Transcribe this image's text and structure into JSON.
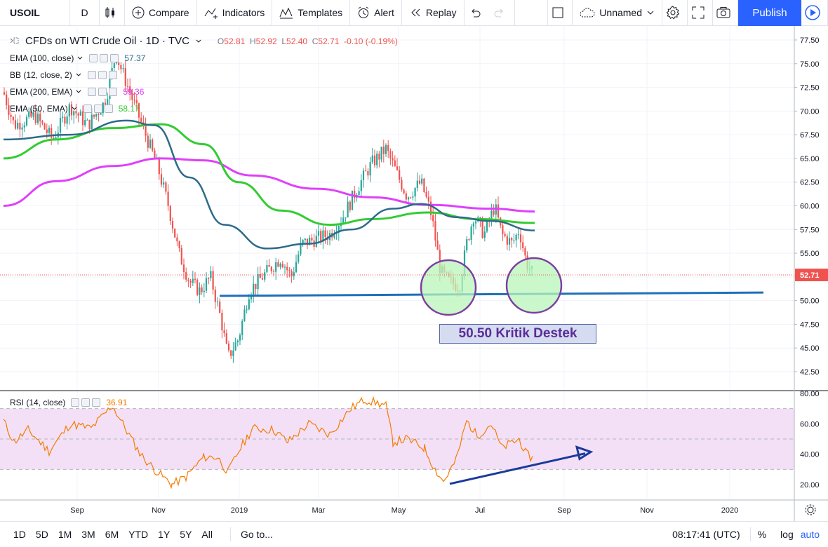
{
  "toolbar": {
    "symbol": "USOIL",
    "interval": "D",
    "compare_label": "Compare",
    "indicators_label": "Indicators",
    "templates_label": "Templates",
    "alert_label": "Alert",
    "replay_label": "Replay",
    "layout_name": "Unnamed",
    "publish_label": "Publish"
  },
  "legend": {
    "title": "CFDs on WTI Crude Oil · 1D · TVC",
    "ohlc": {
      "o_label": "O",
      "o": "52.81",
      "h_label": "H",
      "h": "52.92",
      "l_label": "L",
      "l": "52.40",
      "c_label": "C",
      "c": "52.71",
      "change": "-0.10 (-0.19%)"
    },
    "indicators": [
      {
        "label": "EMA (100, close)",
        "value": "57.37",
        "color": "#2e6b8a"
      },
      {
        "label": "BB (12, close, 2)",
        "value": "",
        "color": "#2196f3"
      },
      {
        "label": "EMA (200, EMA)",
        "value": "59.36",
        "color": "#e040fb"
      },
      {
        "label": "EMA (50, EMA)",
        "value": "58.17",
        "color": "#33cc33"
      }
    ]
  },
  "rsi": {
    "label": "RSI (14, close)",
    "value": "36.91",
    "color": "#f57c00"
  },
  "price_axis": {
    "ticks": [
      "77.50",
      "75.00",
      "72.50",
      "70.00",
      "67.50",
      "65.00",
      "62.50",
      "60.00",
      "57.50",
      "55.00",
      "52.50",
      "50.00",
      "47.50",
      "45.00",
      "42.50"
    ],
    "last_price": "52.71",
    "last_price_color": "#ef5350"
  },
  "rsi_axis": {
    "ticks": [
      "80.00",
      "60.00",
      "40.00",
      "20.00"
    ]
  },
  "time_axis": {
    "ticks": [
      "Sep",
      "Nov",
      "2019",
      "Mar",
      "May",
      "Jul",
      "Sep",
      "Nov",
      "2020"
    ]
  },
  "annotation": {
    "text": "50.50 Kritik Destek"
  },
  "bottombar": {
    "ranges": [
      "1D",
      "5D",
      "1M",
      "3M",
      "6M",
      "YTD",
      "1Y",
      "5Y",
      "All"
    ],
    "goto_label": "Go to...",
    "clock": "08:17:41 (UTC)",
    "percent_label": "%",
    "log_label": "log",
    "auto_label": "auto"
  },
  "colors": {
    "up": "#26a69a",
    "down": "#ef5350",
    "support_line": "#1e6fba",
    "circle_fill": "#b9f5b9",
    "circle_stroke": "#7b3fa0",
    "rsi_band": "#f3e0f7",
    "arrow": "#1a3a9c"
  }
}
